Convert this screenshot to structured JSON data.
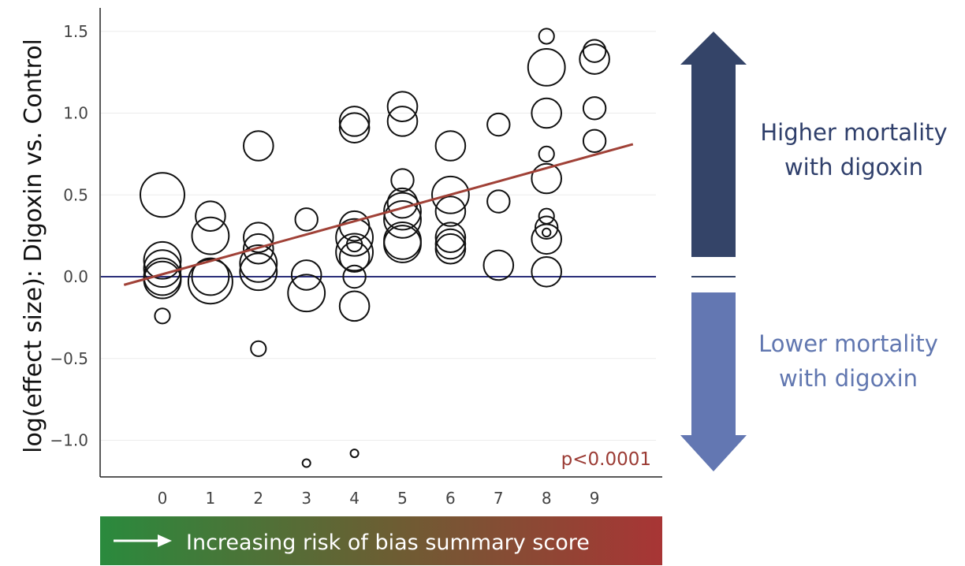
{
  "chart_data": {
    "type": "scatter",
    "ylabel": "log(effect size): Digoxin vs. Control",
    "x_ticks": [
      "0",
      "1",
      "2",
      "3",
      "4",
      "5",
      "6",
      "7",
      "8",
      "9"
    ],
    "y_ticks": [
      "1.5",
      "1.0",
      "0.5",
      "0.0",
      "−0.5",
      "−1.0"
    ],
    "y_tick_values": [
      1.5,
      1.0,
      0.5,
      0.0,
      -0.5,
      -1.0
    ],
    "xlim": [
      -1,
      10.5
    ],
    "ylim": [
      -1.2,
      1.6
    ],
    "grid": "horizontal",
    "reference_line": {
      "y": 0.0,
      "color": "#2b2f7a"
    },
    "trend_line": {
      "x": [
        -0.8,
        9.8
      ],
      "y": [
        -0.05,
        0.81
      ],
      "color": "#a04137"
    },
    "annotation": "p<0.0001",
    "points": [
      {
        "x": 0,
        "y": 0.5,
        "size": 5
      },
      {
        "x": 0,
        "y": 0.1,
        "size": 4
      },
      {
        "x": 0,
        "y": 0.05,
        "size": 4
      },
      {
        "x": 0,
        "y": 0.0,
        "size": 4
      },
      {
        "x": 0,
        "y": -0.02,
        "size": 4
      },
      {
        "x": 0,
        "y": -0.24,
        "size": 1
      },
      {
        "x": 1,
        "y": 0.37,
        "size": 3
      },
      {
        "x": 1,
        "y": 0.25,
        "size": 4
      },
      {
        "x": 1,
        "y": 0.0,
        "size": 4
      },
      {
        "x": 1,
        "y": -0.03,
        "size": 5
      },
      {
        "x": 2,
        "y": 0.8,
        "size": 3
      },
      {
        "x": 2,
        "y": 0.24,
        "size": 3
      },
      {
        "x": 2,
        "y": 0.17,
        "size": 3
      },
      {
        "x": 2,
        "y": 0.08,
        "size": 4
      },
      {
        "x": 2,
        "y": 0.03,
        "size": 4
      },
      {
        "x": 2,
        "y": -0.44,
        "size": 1
      },
      {
        "x": 3,
        "y": 0.35,
        "size": 2
      },
      {
        "x": 3,
        "y": 0.01,
        "size": 3
      },
      {
        "x": 3,
        "y": -0.1,
        "size": 4
      },
      {
        "x": 3,
        "y": -1.14,
        "size": 0.5
      },
      {
        "x": 4,
        "y": 0.95,
        "size": 3
      },
      {
        "x": 4,
        "y": 0.91,
        "size": 3
      },
      {
        "x": 4,
        "y": 0.31,
        "size": 3
      },
      {
        "x": 4,
        "y": 0.24,
        "size": 4
      },
      {
        "x": 4,
        "y": 0.2,
        "size": 1
      },
      {
        "x": 4,
        "y": 0.15,
        "size": 4
      },
      {
        "x": 4,
        "y": 0.12,
        "size": 3
      },
      {
        "x": 4,
        "y": 0.0,
        "size": 2
      },
      {
        "x": 4,
        "y": -0.18,
        "size": 3
      },
      {
        "x": 4,
        "y": -1.08,
        "size": 0.5
      },
      {
        "x": 5,
        "y": 1.04,
        "size": 3
      },
      {
        "x": 5,
        "y": 0.95,
        "size": 3
      },
      {
        "x": 5,
        "y": 0.59,
        "size": 2
      },
      {
        "x": 5,
        "y": 0.45,
        "size": 3
      },
      {
        "x": 5,
        "y": 0.4,
        "size": 4
      },
      {
        "x": 5,
        "y": 0.35,
        "size": 4
      },
      {
        "x": 5,
        "y": 0.22,
        "size": 4
      },
      {
        "x": 5,
        "y": 0.2,
        "size": 4
      },
      {
        "x": 6,
        "y": 0.8,
        "size": 3
      },
      {
        "x": 6,
        "y": 0.5,
        "size": 4
      },
      {
        "x": 6,
        "y": 0.4,
        "size": 3
      },
      {
        "x": 6,
        "y": 0.24,
        "size": 3
      },
      {
        "x": 6,
        "y": 0.2,
        "size": 3
      },
      {
        "x": 6,
        "y": 0.17,
        "size": 3
      },
      {
        "x": 7,
        "y": 0.93,
        "size": 2
      },
      {
        "x": 7,
        "y": 0.46,
        "size": 2
      },
      {
        "x": 7,
        "y": 0.07,
        "size": 3
      },
      {
        "x": 8,
        "y": 1.47,
        "size": 1
      },
      {
        "x": 8,
        "y": 1.28,
        "size": 4
      },
      {
        "x": 8,
        "y": 1.0,
        "size": 3
      },
      {
        "x": 8,
        "y": 0.75,
        "size": 1
      },
      {
        "x": 8,
        "y": 0.6,
        "size": 3
      },
      {
        "x": 8,
        "y": 0.37,
        "size": 1
      },
      {
        "x": 8,
        "y": 0.3,
        "size": 2
      },
      {
        "x": 8,
        "y": 0.27,
        "size": 0.6
      },
      {
        "x": 8,
        "y": 0.23,
        "size": 3
      },
      {
        "x": 8,
        "y": 0.03,
        "size": 3
      },
      {
        "x": 9,
        "y": 1.38,
        "size": 2
      },
      {
        "x": 9,
        "y": 1.33,
        "size": 3
      },
      {
        "x": 9,
        "y": 1.03,
        "size": 2
      },
      {
        "x": 9,
        "y": 0.83,
        "size": 2
      }
    ]
  },
  "side_panel": {
    "up_line1": "Higher mortality",
    "up_line2": "with digoxin",
    "up_color": "#344468",
    "down_line1": "Lower mortality",
    "down_line2": "with digoxin",
    "down_color": "#6377b2"
  },
  "banner": {
    "text": "Increasing risk of bias summary score",
    "gradient_start": "#2a8a3d",
    "gradient_end": "#a83535"
  }
}
